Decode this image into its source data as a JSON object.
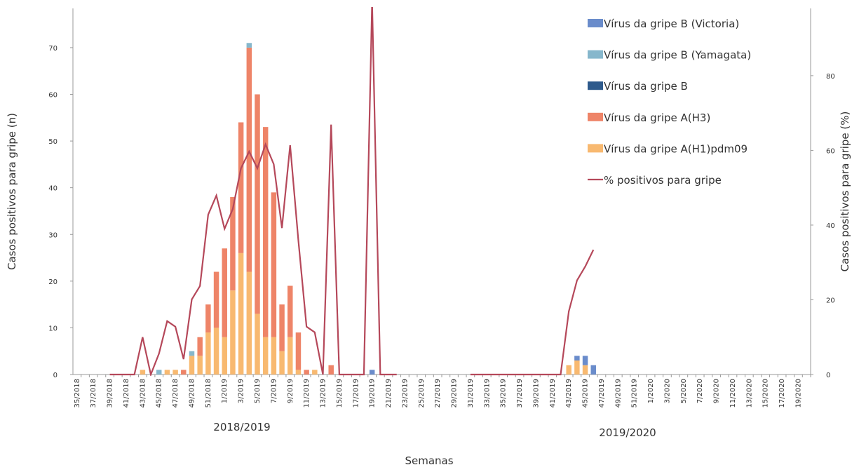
{
  "chart_data": {
    "type": "bar",
    "y_label": "Casos positivos para gripe (n)",
    "y2_label": "Casos positivos para gripe (%)",
    "x_label": "Semanas",
    "annotations": [
      "2018/2019",
      "2019/2020"
    ],
    "categories": [
      "35/2018",
      null,
      "37/2018",
      null,
      "39/2018",
      null,
      "41/2018",
      null,
      "43/2018",
      null,
      "45/2018",
      null,
      "47/2018",
      null,
      "49/2018",
      null,
      "51/2018",
      null,
      "1/2019",
      null,
      "3/2019",
      null,
      "5/2019",
      null,
      "7/2019",
      null,
      "9/2019",
      null,
      "11/2019",
      null,
      "13/2019",
      null,
      "15/2019",
      null,
      "17/2019",
      null,
      "19/2019",
      null,
      "21/2019",
      null,
      "23/2019",
      null,
      "25/2019",
      null,
      "27/2019",
      null,
      "29/2019",
      null,
      "31/2019",
      null,
      "33/2019",
      null,
      "35/2019",
      null,
      "37/2019",
      null,
      "39/2019",
      null,
      "41/2019",
      null,
      "43/2019",
      null,
      "45/2019",
      null,
      "47/2019",
      null,
      "49/2019",
      null,
      "51/2019",
      null,
      "1/2020",
      null,
      "3/2020",
      null,
      "5/2020",
      null,
      "7/2020",
      null,
      "9/2020",
      null,
      "11/2020",
      null,
      "13/2020",
      null,
      "15/2020",
      null,
      "17/2020",
      null,
      "19/2020",
      null
    ],
    "series": [
      {
        "name": "Vírus da gripe B (Victoria)",
        "color": "#6a8ccb",
        "values": [
          0,
          0,
          0,
          0,
          0,
          0,
          0,
          0,
          0,
          0,
          0,
          0,
          0,
          0,
          0,
          0,
          0,
          0,
          0,
          0,
          0,
          0,
          0,
          0,
          0,
          0,
          0,
          0,
          0,
          0,
          0,
          0,
          0,
          0,
          0,
          0,
          1,
          0,
          0,
          0,
          0,
          0,
          0,
          0,
          0,
          0,
          0,
          0,
          0,
          0,
          0,
          0,
          0,
          0,
          0,
          0,
          0,
          0,
          0,
          0,
          0,
          1,
          2,
          2,
          0,
          0,
          0,
          0,
          0,
          0,
          0,
          0,
          0,
          0,
          0,
          0,
          0,
          0,
          0,
          0,
          0,
          0,
          0,
          0,
          0,
          0,
          0,
          0,
          0,
          0
        ]
      },
      {
        "name": "Vírus da gripe B (Yamagata)",
        "color": "#86b7cc",
        "values": [
          0,
          0,
          0,
          0,
          0,
          0,
          0,
          0,
          0,
          0,
          1,
          0,
          0,
          0,
          1,
          0,
          0,
          0,
          0,
          0,
          0,
          1,
          0,
          0,
          0,
          0,
          0,
          0,
          0,
          0,
          0,
          0,
          0,
          0,
          0,
          0,
          0,
          0,
          0,
          0,
          0,
          0,
          0,
          0,
          0,
          0,
          0,
          0,
          0,
          0,
          0,
          0,
          0,
          0,
          0,
          0,
          0,
          0,
          0,
          0,
          0,
          0,
          0,
          0,
          0,
          0,
          0,
          0,
          0,
          0,
          0,
          0,
          0,
          0,
          0,
          0,
          0,
          0,
          0,
          0,
          0,
          0,
          0,
          0,
          0,
          0,
          0,
          0,
          0,
          0
        ]
      },
      {
        "name": "Vírus da gripe B",
        "color": "#2e5a8c",
        "values": [
          0,
          0,
          0,
          0,
          0,
          0,
          0,
          0,
          0,
          0,
          0,
          0,
          0,
          0,
          0,
          0,
          0,
          0,
          0,
          0,
          0,
          0,
          0,
          0,
          0,
          0,
          0,
          0,
          0,
          0,
          0,
          0,
          0,
          0,
          0,
          0,
          0,
          0,
          0,
          0,
          0,
          0,
          0,
          0,
          0,
          0,
          0,
          0,
          0,
          0,
          0,
          0,
          0,
          0,
          0,
          0,
          0,
          0,
          0,
          0,
          0,
          0,
          0,
          0,
          0,
          0,
          0,
          0,
          0,
          0,
          0,
          0,
          0,
          0,
          0,
          0,
          0,
          0,
          0,
          0,
          0,
          0,
          0,
          0,
          0,
          0,
          0,
          0,
          0,
          0
        ]
      },
      {
        "name": "Vírus da gripe A(H3)",
        "color": "#ee8468",
        "values": [
          0,
          0,
          0,
          0,
          0,
          0,
          0,
          0,
          0,
          0,
          0,
          0,
          0,
          1,
          0,
          4,
          6,
          12,
          19,
          20,
          28,
          48,
          47,
          45,
          31,
          10,
          11,
          8,
          1,
          0,
          0,
          2,
          0,
          0,
          0,
          0,
          0,
          0,
          0,
          0,
          0,
          0,
          0,
          0,
          0,
          0,
          0,
          0,
          0,
          0,
          0,
          0,
          0,
          0,
          0,
          0,
          0,
          0,
          0,
          0,
          0,
          0,
          0,
          0,
          0,
          0,
          0,
          0,
          0,
          0,
          0,
          0,
          0,
          0,
          0,
          0,
          0,
          0,
          0,
          0,
          0,
          0,
          0,
          0,
          0,
          0,
          0,
          0,
          0,
          0
        ]
      },
      {
        "name": "Vírus da gripe A(H1)pdm09",
        "color": "#f8b970",
        "values": [
          0,
          0,
          0,
          0,
          0,
          0,
          0,
          0,
          1,
          0,
          0,
          1,
          1,
          0,
          4,
          4,
          9,
          10,
          8,
          18,
          26,
          22,
          13,
          8,
          8,
          5,
          8,
          1,
          0,
          1,
          0,
          0,
          0,
          0,
          0,
          0,
          0,
          0,
          0,
          0,
          0,
          0,
          0,
          0,
          0,
          0,
          0,
          0,
          0,
          0,
          0,
          0,
          0,
          0,
          0,
          0,
          0,
          0,
          0,
          0,
          2,
          3,
          2,
          0,
          0,
          0,
          0,
          0,
          0,
          0,
          0,
          0,
          0,
          0,
          0,
          0,
          0,
          0,
          0,
          0,
          0,
          0,
          0,
          0,
          0,
          0,
          0,
          0,
          0,
          0
        ]
      },
      {
        "name": "% positivos para gripe",
        "color": "#b5485a",
        "type": "line",
        "axis": "y2",
        "values": [
          null,
          null,
          null,
          null,
          0,
          0,
          0,
          0,
          10,
          0,
          5.6,
          14.3,
          12.8,
          4.1,
          20.1,
          23.7,
          42.8,
          47.9,
          39,
          44.3,
          55.2,
          59.7,
          55.2,
          61.6,
          56.3,
          39.2,
          61.4,
          36,
          12.8,
          11.3,
          0,
          66.9,
          0,
          0,
          0,
          0,
          100,
          0,
          0,
          0,
          null,
          null,
          null,
          null,
          null,
          null,
          null,
          null,
          0,
          0,
          0,
          0,
          0,
          0,
          0,
          0,
          0,
          0,
          0,
          0,
          16.9,
          25.2,
          28.9,
          33.4,
          null,
          null,
          null,
          null,
          null,
          null,
          null,
          null,
          null,
          null,
          null,
          null,
          null,
          null,
          null,
          null,
          null,
          null,
          null,
          null,
          null,
          null,
          null,
          null,
          null,
          null
        ]
      }
    ],
    "ylim": [
      0,
      78.4
    ],
    "yticks": [
      0,
      10,
      20,
      30,
      40,
      50,
      60,
      70
    ],
    "y2lim": [
      0,
      98
    ],
    "y2ticks": [
      0,
      20,
      40,
      60,
      80
    ],
    "legend": "top-right"
  }
}
